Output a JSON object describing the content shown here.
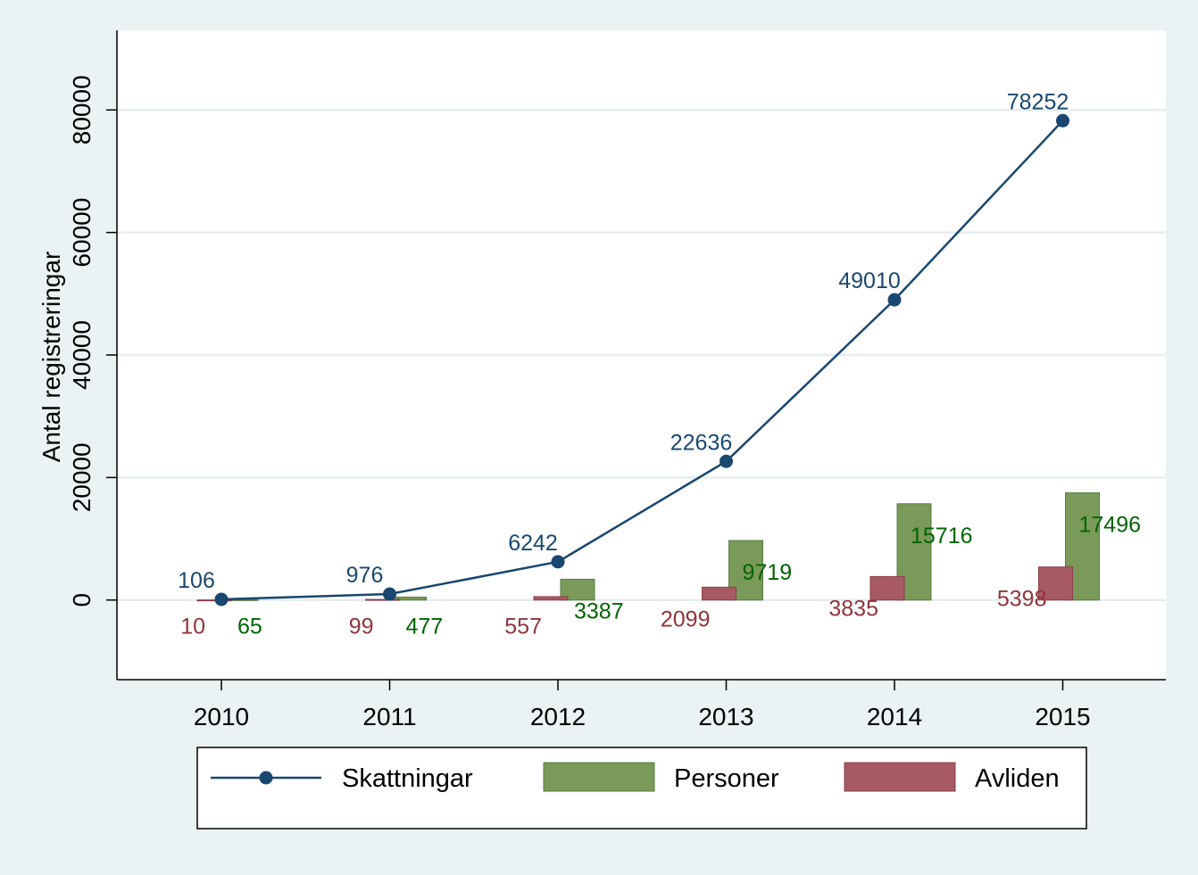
{
  "chart_data": {
    "type": "bar",
    "ylabel": "Antal registreringar",
    "ylim": [
      -13000,
      93000
    ],
    "y_ticks": [
      0,
      20000,
      40000,
      60000,
      80000
    ],
    "categories": [
      "2010",
      "2011",
      "2012",
      "2013",
      "2014",
      "2015"
    ],
    "series": [
      {
        "name": "Skattningar",
        "type": "line",
        "color": "#1a476f",
        "values": [
          106,
          976,
          6242,
          22636,
          49010,
          78252
        ]
      },
      {
        "name": "Personer",
        "type": "bar",
        "color": "#7a9a59",
        "label_color": "#006400",
        "values": [
          65,
          477,
          3387,
          9719,
          15716,
          17496
        ]
      },
      {
        "name": "Avliden",
        "type": "bar",
        "color": "#a85a64",
        "label_color": "#90353b",
        "values": [
          10,
          99,
          557,
          2099,
          3835,
          5398
        ]
      }
    ],
    "grid": true,
    "legend_position": "bottom"
  }
}
